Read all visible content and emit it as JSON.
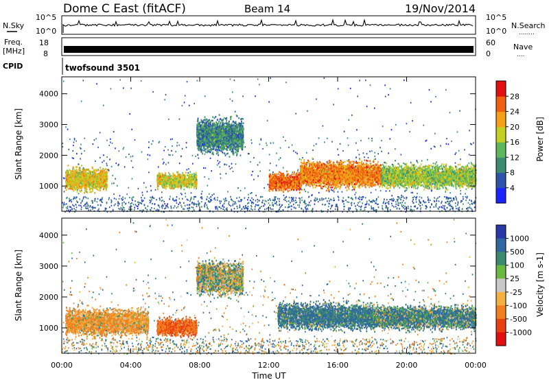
{
  "header": {
    "station": "Dome C East (fitACF)",
    "beam": "Beam 14",
    "date": "19/Nov/2014"
  },
  "noise_panel": {
    "left_label": "N.Sky",
    "left_ticks": [
      "10^5",
      "10^0"
    ],
    "right_ticks": [
      "10^5",
      "10^0"
    ],
    "right_label": "N.Search",
    "right_dots": "........"
  },
  "freq_panel": {
    "left_label_1": "Freq.",
    "left_label_2": "[MHz]",
    "left_ticks": [
      "18",
      "8"
    ],
    "right_ticks": [
      "60",
      "0"
    ],
    "right_label": "Nave",
    "right_dots": "....",
    "cpid_label": "CPID",
    "cpid_text": "twofsound 3501"
  },
  "power_panel": {
    "ylabel": "Slant Range [km]",
    "yticks": [
      1000,
      2000,
      3000,
      4000
    ],
    "colorbar_label": "Power [dB]",
    "colorbar_ticks": [
      "4",
      "8",
      "12",
      "16",
      "20",
      "24",
      "28"
    ],
    "colorbar_colors": [
      "#1a24ff",
      "#2c53aa",
      "#3d8a73",
      "#5cb85a",
      "#c4cf24",
      "#f4a018",
      "#f06010",
      "#e01010"
    ]
  },
  "velocity_panel": {
    "ylabel": "Slant Range [km]",
    "yticks": [
      1000,
      2000,
      3000,
      4000
    ],
    "colorbar_label": "Velocity [m s-1]",
    "colorbar_ticks": [
      "1000",
      "500",
      "100",
      "25",
      "-25",
      "-100",
      "-500",
      "-1000"
    ],
    "colorbar_colors": [
      "#2838a8",
      "#2f68a0",
      "#3a8a6e",
      "#6ab840",
      "#c8c8c8",
      "#f4b040",
      "#f08020",
      "#e84010",
      "#e01010"
    ]
  },
  "xaxis": {
    "label": "Time UT",
    "ticks": [
      "00:00",
      "04:00",
      "08:00",
      "12:00",
      "16:00",
      "20:00",
      "00:00"
    ]
  },
  "chart_data": {
    "type": "heatmap",
    "x_range_hours": [
      0,
      24
    ],
    "y_range_km": [
      180,
      4550
    ],
    "power_range_db": [
      0,
      32
    ],
    "velocity_range_ms": [
      -1000,
      1000
    ],
    "power_features": [
      {
        "t_start": 0.2,
        "t_end": 2.6,
        "range_km": [
          800,
          1700
        ],
        "power_db": 20
      },
      {
        "t_start": 5.5,
        "t_end": 7.8,
        "range_km": [
          900,
          1500
        ],
        "power_db": 18
      },
      {
        "t_start": 7.8,
        "t_end": 10.5,
        "range_km": [
          2000,
          3300
        ],
        "power_db": 10
      },
      {
        "t_start": 12.0,
        "t_end": 13.8,
        "range_km": [
          800,
          1500
        ],
        "power_db": 26
      },
      {
        "t_start": 13.8,
        "t_end": 18.5,
        "range_km": [
          900,
          1900
        ],
        "power_db": 24
      },
      {
        "t_start": 18.5,
        "t_end": 24.0,
        "range_km": [
          900,
          1800
        ],
        "power_db": 16
      }
    ],
    "velocity_features": [
      {
        "t_start": 0.2,
        "t_end": 5.0,
        "range_km": [
          700,
          1700
        ],
        "velocity_ms": -100
      },
      {
        "t_start": 5.5,
        "t_end": 7.8,
        "range_km": [
          700,
          1400
        ],
        "velocity_ms": -500
      },
      {
        "t_start": 7.8,
        "t_end": 10.5,
        "range_km": [
          2000,
          3300
        ],
        "velocity_ms": 0
      },
      {
        "t_start": 12.5,
        "t_end": 18.0,
        "range_km": [
          900,
          1900
        ],
        "velocity_ms": 120
      },
      {
        "t_start": 18.0,
        "t_end": 24.0,
        "range_km": [
          900,
          1800
        ],
        "velocity_ms": 80
      }
    ]
  }
}
